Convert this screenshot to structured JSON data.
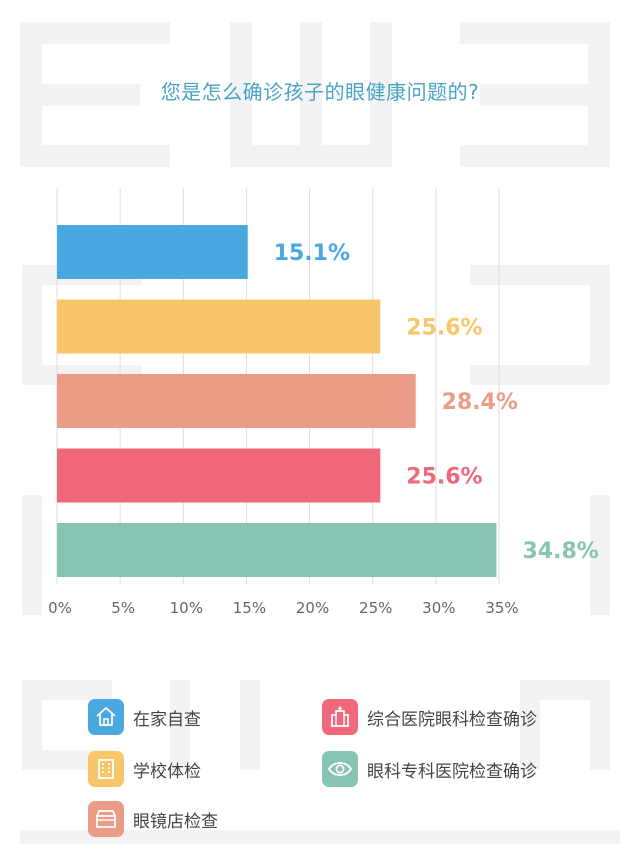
{
  "title": "您是怎么确诊孩子的眼健康问题的?",
  "chart_data": {
    "type": "bar",
    "orientation": "horizontal",
    "categories": [
      "在家自查",
      "学校体检",
      "眼镜店检查",
      "综合医院眼科检查确诊",
      "眼科专科医院检查确诊"
    ],
    "values": [
      15.1,
      25.6,
      28.4,
      25.6,
      34.8
    ],
    "data_labels": [
      "15.1%",
      "25.6%",
      "28.4%",
      "25.6%",
      "34.8%"
    ],
    "colors": [
      "#4aa8e0",
      "#f9c56b",
      "#eb9c86",
      "#f0687a",
      "#88c4b3"
    ],
    "xlim": [
      0,
      35
    ],
    "xticks": [
      "0%",
      "5%",
      "10%",
      "15%",
      "20%",
      "25%",
      "30%",
      "35%"
    ],
    "grid": true,
    "legend_position": "bottom"
  },
  "legend": [
    {
      "label": "在家自查",
      "icon": "house-icon",
      "color": "#4aa8e0"
    },
    {
      "label": "学校体检",
      "icon": "building-icon",
      "color": "#f9c56b"
    },
    {
      "label": "眼镜店检查",
      "icon": "shop-icon",
      "color": "#eb9c86"
    },
    {
      "label": "综合医院眼科检查确诊",
      "icon": "hospital-icon",
      "color": "#f0687a"
    },
    {
      "label": "眼科专科医院检查确诊",
      "icon": "eye-icon",
      "color": "#88c4b3"
    }
  ]
}
